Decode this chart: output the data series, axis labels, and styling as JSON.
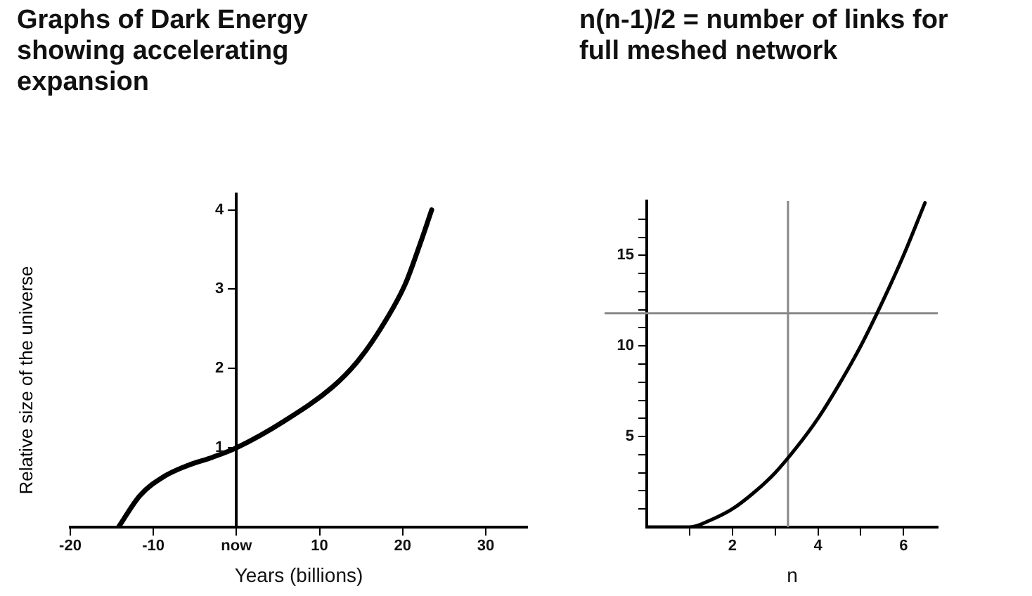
{
  "chart_data": [
    {
      "type": "line",
      "title": "Graphs of Dark Energy showing accelerating expansion",
      "xlabel": "Years (billions)",
      "ylabel": "Relative size of the universe",
      "marker": "none",
      "grid": false,
      "x": [
        -14.2,
        -11.6,
        -8.7,
        -5.8,
        -2.9,
        0,
        5.8,
        11.6,
        14.5,
        17.4,
        20.3,
        22,
        23.5
      ],
      "series": [
        {
          "color": "#000000",
          "values": [
            0,
            0.4,
            0.64,
            0.78,
            0.88,
            1,
            1.34,
            1.77,
            2.08,
            2.51,
            3.06,
            3.54,
            4.0
          ]
        }
      ],
      "xlim": [
        -20,
        35
      ],
      "ylim": [
        0,
        4.2
      ],
      "xticks": [
        -20,
        -10,
        {
          "value": 0,
          "label": "now"
        },
        10,
        20,
        30
      ],
      "yticks": [
        1,
        2,
        3,
        4
      ]
    },
    {
      "type": "line",
      "title": "n(n-1)/2 = number of links for full meshed network",
      "xlabel": "n",
      "marker": "none",
      "grid": false,
      "x": [
        0,
        0.5,
        1,
        1.5,
        2,
        2.5,
        3,
        3.5,
        4,
        4.5,
        5,
        5.5,
        6,
        6.5
      ],
      "series": [
        {
          "color": "#000000",
          "values": [
            0,
            0,
            0,
            0.4,
            1,
            1.9,
            3,
            4.4,
            6,
            7.9,
            10,
            12.4,
            15,
            17.9
          ]
        }
      ],
      "xlim": [
        0,
        6.8
      ],
      "ylim": [
        0,
        18
      ],
      "xticks": [
        {
          "value": 1,
          "label": null
        },
        2,
        {
          "value": 3,
          "label": null
        },
        4,
        {
          "value": 5,
          "label": null
        },
        6
      ],
      "yticks": [
        {
          "value": 1,
          "label": null
        },
        {
          "value": 2,
          "label": null
        },
        {
          "value": 3,
          "label": null
        },
        {
          "value": 4,
          "label": null
        },
        5,
        {
          "value": 6,
          "label": null
        },
        {
          "value": 7,
          "label": null
        },
        {
          "value": 8,
          "label": null
        },
        {
          "value": 9,
          "label": null
        },
        10,
        {
          "value": 11,
          "label": null
        },
        {
          "value": 12,
          "label": null
        },
        {
          "value": 13,
          "label": null
        },
        {
          "value": 14,
          "label": null
        },
        15,
        {
          "value": 16,
          "label": null
        },
        {
          "value": 17,
          "label": null
        }
      ],
      "ref_lines": [
        {
          "axis": "x",
          "value": 3.3,
          "color": "#888888"
        },
        {
          "axis": "y",
          "value": 11.8,
          "color": "#888888"
        }
      ]
    }
  ]
}
